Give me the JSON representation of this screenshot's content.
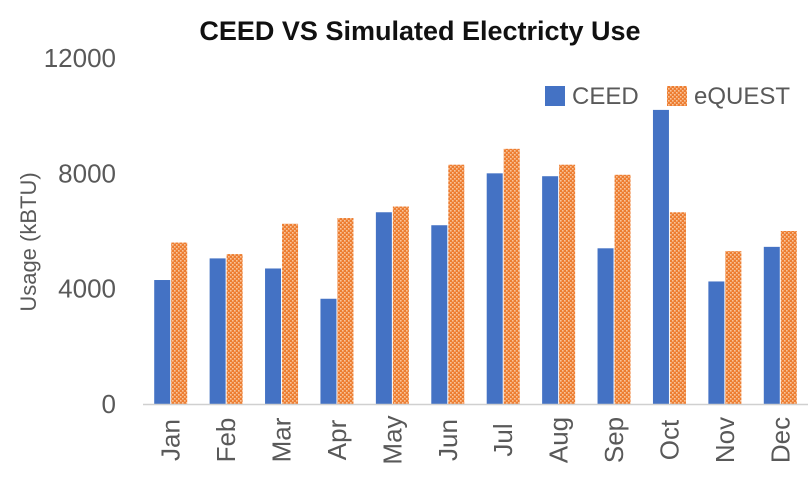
{
  "chart_data": {
    "type": "bar",
    "title": "CEED VS Simulated Electricty Use",
    "xlabel": "",
    "ylabel": "Usage (kBTU)",
    "ylim": [
      0,
      12000
    ],
    "yticks": [
      0,
      4000,
      8000,
      12000
    ],
    "categories": [
      "Jan",
      "Feb",
      "Mar",
      "Apr",
      "May",
      "Jun",
      "Jul",
      "Aug",
      "Sep",
      "Oct",
      "Nov",
      "Dec"
    ],
    "series": [
      {
        "name": "CEED",
        "color": "#4472C4",
        "pattern": "solid",
        "values": [
          4300,
          5050,
          4700,
          3650,
          6650,
          6200,
          8000,
          7900,
          5400,
          10200,
          4250,
          5450
        ]
      },
      {
        "name": "eQUEST",
        "color": "#ED7D31",
        "pattern": "dotted",
        "values": [
          5600,
          5200,
          6250,
          6450,
          6850,
          8300,
          8850,
          8300,
          7950,
          6650,
          5300,
          6000
        ]
      }
    ],
    "grid": false,
    "legend": "top-right"
  }
}
